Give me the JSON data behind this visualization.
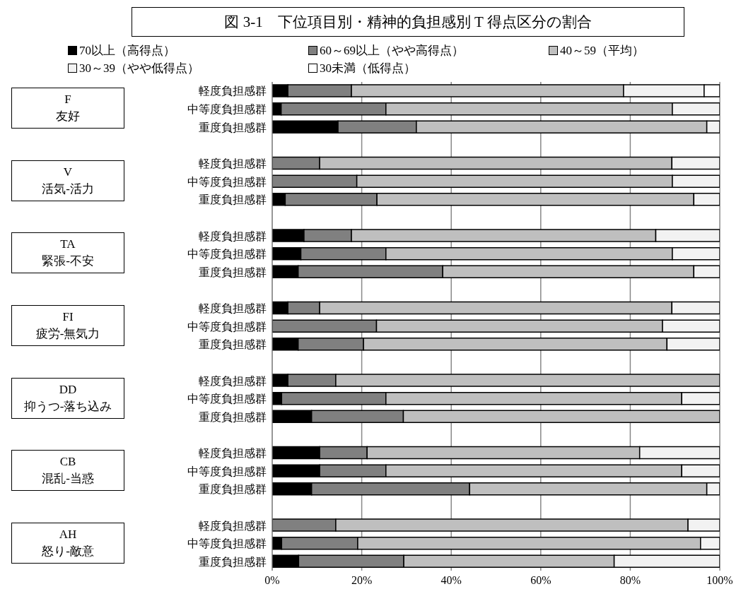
{
  "chart_data": {
    "type": "bar",
    "orientation": "horizontal",
    "stacked": true,
    "title": "図 3-1　下位項目別・精神的負担感別 T 得点区分の割合",
    "categories": [
      "軽度負担感群",
      "中等度負担感群",
      "重度負担感群",
      null,
      "軽度負担感群",
      "中等度負担感群",
      "重度負担感群",
      null,
      "軽度負担感群",
      "中等度負担感群",
      "重度負担感群",
      null,
      "軽度負担感群",
      "中等度負担感群",
      "重度負担感群",
      null,
      "軽度負担感群",
      "中等度負担感群",
      "重度負担感群",
      null,
      "軽度負担感群",
      "中等度負担感群",
      "重度負担感群",
      null,
      "軽度負担感群",
      "中等度負担感群",
      "重度負担感群"
    ],
    "series": [
      {
        "name": "70以上（高得点）",
        "color": "#000000",
        "values": [
          3.5,
          2.0,
          14.7,
          null,
          0,
          0,
          2.9,
          null,
          7.1,
          6.4,
          5.8,
          null,
          3.5,
          0,
          5.8,
          null,
          3.5,
          2.1,
          8.8,
          null,
          10.6,
          10.6,
          8.8,
          null,
          0,
          2.1,
          5.9
        ]
      },
      {
        "name": "60～69以上（やや高得点）",
        "color": "#808080",
        "values": [
          14.2,
          23.4,
          17.5,
          null,
          10.6,
          18.9,
          20.5,
          null,
          10.6,
          19.0,
          32.3,
          null,
          7.1,
          23.3,
          14.6,
          null,
          10.7,
          23.3,
          20.5,
          null,
          10.6,
          14.8,
          35.3,
          null,
          14.2,
          17.0,
          23.5
        ]
      },
      {
        "name": "40～59（平均）",
        "color": "#bfbfbf",
        "values": [
          60.8,
          64.0,
          64.9,
          null,
          78.7,
          70.5,
          70.8,
          null,
          68.0,
          64.0,
          56.1,
          null,
          78.7,
          63.9,
          67.8,
          null,
          85.8,
          66.1,
          70.7,
          null,
          60.9,
          66.1,
          53.0,
          null,
          78.7,
          76.6,
          47.0
        ]
      },
      {
        "name": "30～39（やや低得点）",
        "color": "#f2f2f2",
        "values": [
          18.0,
          10.6,
          2.9,
          null,
          10.7,
          10.6,
          5.8,
          null,
          14.3,
          10.6,
          5.8,
          null,
          10.7,
          12.8,
          11.8,
          null,
          0,
          8.5,
          0,
          null,
          17.9,
          8.5,
          2.9,
          null,
          7.1,
          4.3,
          23.6
        ]
      },
      {
        "name": "30未満（低得点）",
        "color": "#ffffff",
        "values": [
          3.5,
          0,
          0,
          null,
          0,
          0,
          0,
          null,
          0,
          0,
          0,
          null,
          0,
          0,
          0,
          null,
          0,
          0,
          0,
          null,
          0,
          0,
          0,
          null,
          0,
          0,
          0
        ]
      }
    ],
    "xlim": [
      0,
      100
    ],
    "xticks": [
      {
        "value": 0,
        "label": "0%"
      },
      {
        "value": 20,
        "label": "20%"
      },
      {
        "value": 40,
        "label": "40%"
      },
      {
        "value": 60,
        "label": "60%"
      },
      {
        "value": 80,
        "label": "80%"
      },
      {
        "value": 100,
        "label": "100%"
      }
    ],
    "grid": "x",
    "legend": "top",
    "annotations": [
      "F\n友好",
      "V\n活気-活力",
      "TA\n緊張-不安",
      "FI\n疲労-無気力",
      "DD\n抑うつ-落ち込み",
      "CB\n混乱-当惑",
      "AH\n怒り-敵意"
    ]
  }
}
